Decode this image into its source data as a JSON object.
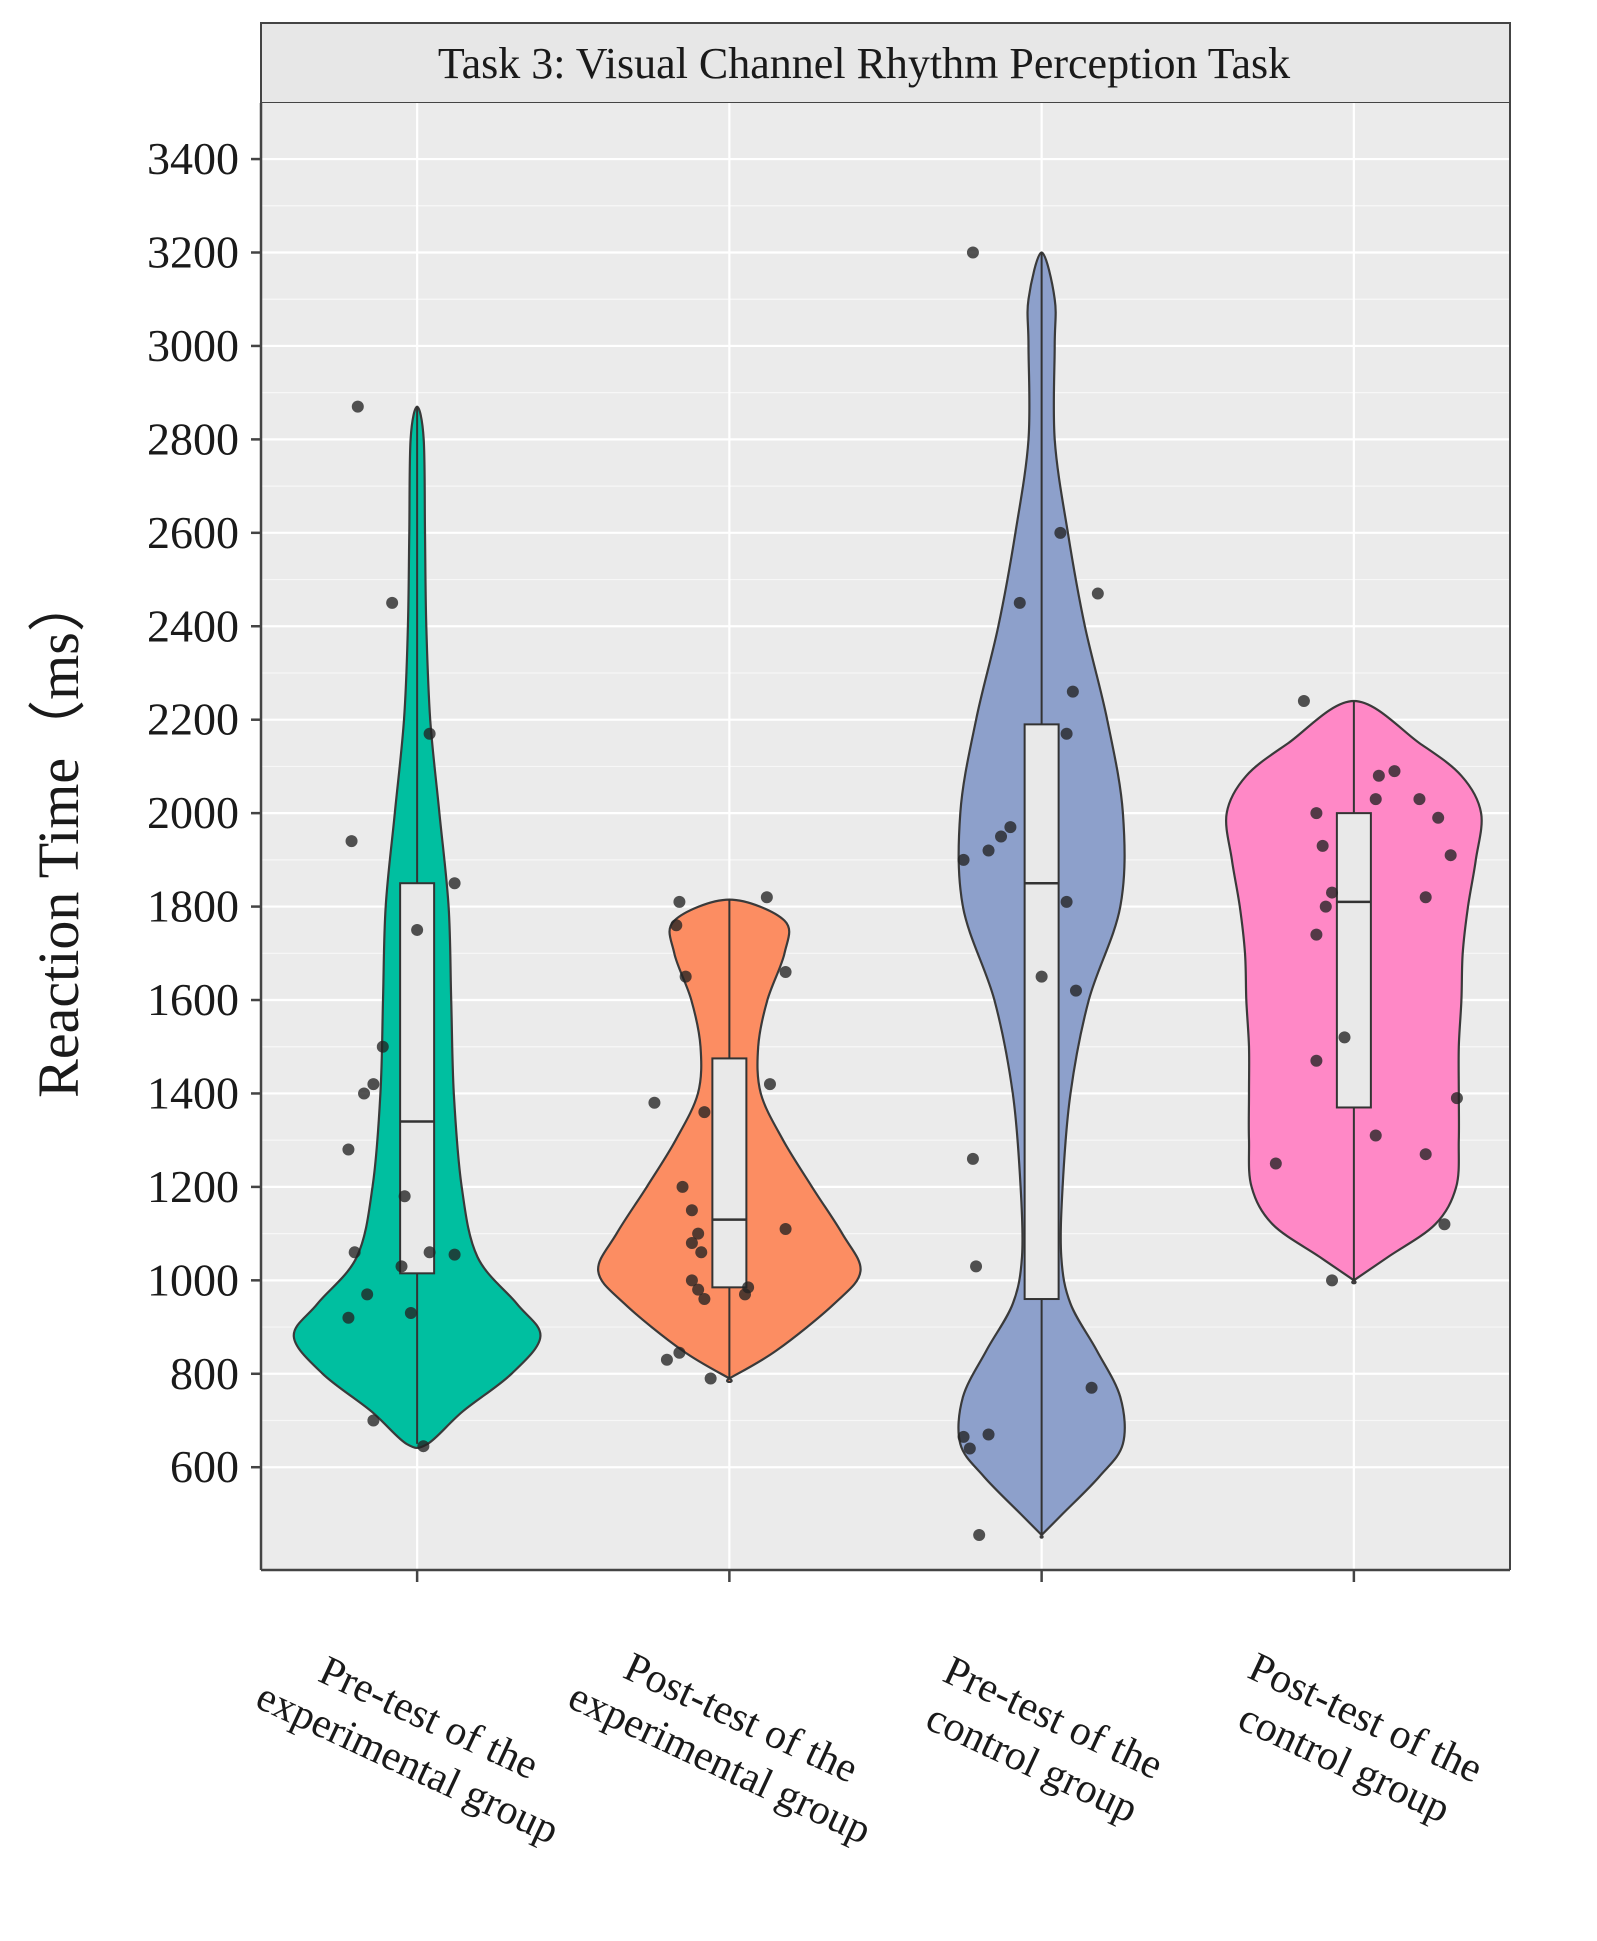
{
  "chart_data": {
    "type": "violin",
    "title": "Task 3: Visual Channel Rhythm Perception Task",
    "ylabel": "Reaction Time（ms）",
    "xlabel": "",
    "ylim": [
      380,
      3520
    ],
    "yticks": [
      600,
      800,
      1000,
      1200,
      1400,
      1600,
      1800,
      2000,
      2200,
      2400,
      2600,
      2800,
      3000,
      3200,
      3400
    ],
    "grid": true,
    "groups": [
      {
        "label": [
          "Pre-test of the",
          "experimental group"
        ],
        "color": "#00BFA0",
        "box": {
          "q1": 1015,
          "median": 1340,
          "q3": 1850
        },
        "violin": [
          [
            650,
            0.08
          ],
          [
            720,
            0.35
          ],
          [
            800,
            0.72
          ],
          [
            880,
            0.94
          ],
          [
            950,
            0.76
          ],
          [
            1050,
            0.46
          ],
          [
            1200,
            0.34
          ],
          [
            1400,
            0.28
          ],
          [
            1600,
            0.26
          ],
          [
            1800,
            0.24
          ],
          [
            2000,
            0.17
          ],
          [
            2200,
            0.1
          ],
          [
            2400,
            0.07
          ],
          [
            2600,
            0.06
          ],
          [
            2800,
            0.05
          ],
          [
            2870,
            0.0
          ]
        ],
        "points": [
          [
            0.31,
            2870
          ],
          [
            0.42,
            2450
          ],
          [
            0.54,
            2170
          ],
          [
            0.29,
            1940
          ],
          [
            0.62,
            1850
          ],
          [
            0.5,
            1750
          ],
          [
            0.39,
            1500
          ],
          [
            0.36,
            1420
          ],
          [
            0.33,
            1400
          ],
          [
            0.28,
            1280
          ],
          [
            0.46,
            1180
          ],
          [
            0.3,
            1060
          ],
          [
            0.54,
            1060
          ],
          [
            0.62,
            1055
          ],
          [
            0.45,
            1030
          ],
          [
            0.34,
            970
          ],
          [
            0.28,
            920
          ],
          [
            0.48,
            930
          ],
          [
            0.36,
            700
          ],
          [
            0.52,
            645
          ]
        ]
      },
      {
        "label": [
          "Post-test of the",
          "experimental group"
        ],
        "color": "#FC8D62",
        "box": {
          "q1": 985,
          "median": 1130,
          "q3": 1475
        },
        "violin": [
          [
            790,
            0.0
          ],
          [
            850,
            0.36
          ],
          [
            950,
            0.8
          ],
          [
            1020,
            1.0
          ],
          [
            1100,
            0.86
          ],
          [
            1200,
            0.63
          ],
          [
            1300,
            0.41
          ],
          [
            1400,
            0.24
          ],
          [
            1500,
            0.22
          ],
          [
            1600,
            0.29
          ],
          [
            1700,
            0.42
          ],
          [
            1770,
            0.42
          ],
          [
            1815,
            0.0
          ]
        ],
        "points": [
          [
            0.34,
            1810
          ],
          [
            0.62,
            1820
          ],
          [
            0.33,
            1760
          ],
          [
            0.36,
            1650
          ],
          [
            0.68,
            1660
          ],
          [
            0.26,
            1380
          ],
          [
            0.63,
            1420
          ],
          [
            0.42,
            1360
          ],
          [
            0.35,
            1200
          ],
          [
            0.38,
            1150
          ],
          [
            0.4,
            1100
          ],
          [
            0.68,
            1110
          ],
          [
            0.38,
            1080
          ],
          [
            0.41,
            1060
          ],
          [
            0.38,
            1000
          ],
          [
            0.4,
            980
          ],
          [
            0.56,
            985
          ],
          [
            0.42,
            960
          ],
          [
            0.55,
            970
          ],
          [
            0.3,
            830
          ],
          [
            0.34,
            845
          ],
          [
            0.44,
            790
          ]
        ]
      },
      {
        "label": [
          "Pre-test of the",
          "control group"
        ],
        "color": "#8DA0CB",
        "box": {
          "q1": 960,
          "median": 1850,
          "q3": 2190
        },
        "violin": [
          [
            455,
            0.0
          ],
          [
            500,
            0.16
          ],
          [
            580,
            0.44
          ],
          [
            650,
            0.62
          ],
          [
            750,
            0.6
          ],
          [
            850,
            0.42
          ],
          [
            950,
            0.22
          ],
          [
            1050,
            0.15
          ],
          [
            1200,
            0.16
          ],
          [
            1400,
            0.22
          ],
          [
            1600,
            0.36
          ],
          [
            1800,
            0.6
          ],
          [
            2000,
            0.62
          ],
          [
            2200,
            0.5
          ],
          [
            2400,
            0.33
          ],
          [
            2600,
            0.2
          ],
          [
            2800,
            0.1
          ],
          [
            3000,
            0.1
          ],
          [
            3100,
            0.1
          ],
          [
            3200,
            0.0
          ]
        ],
        "points": [
          [
            0.28,
            3200
          ],
          [
            0.56,
            2600
          ],
          [
            0.43,
            2450
          ],
          [
            0.68,
            2470
          ],
          [
            0.6,
            2260
          ],
          [
            0.58,
            2170
          ],
          [
            0.25,
            1900
          ],
          [
            0.33,
            1920
          ],
          [
            0.4,
            1970
          ],
          [
            0.37,
            1950
          ],
          [
            0.58,
            1810
          ],
          [
            0.5,
            1650
          ],
          [
            0.61,
            1620
          ],
          [
            0.28,
            1260
          ],
          [
            0.29,
            1030
          ],
          [
            0.66,
            770
          ],
          [
            0.25,
            665
          ],
          [
            0.33,
            670
          ],
          [
            0.27,
            640
          ],
          [
            0.3,
            455
          ]
        ]
      },
      {
        "label": [
          "Post-test of the",
          "control group"
        ],
        "color": "#FF88C6",
        "box": {
          "q1": 1370,
          "median": 1810,
          "q3": 2000
        },
        "violin": [
          [
            1000,
            0.0
          ],
          [
            1050,
            0.26
          ],
          [
            1120,
            0.62
          ],
          [
            1200,
            0.78
          ],
          [
            1300,
            0.8
          ],
          [
            1400,
            0.8
          ],
          [
            1500,
            0.8
          ],
          [
            1600,
            0.82
          ],
          [
            1700,
            0.83
          ],
          [
            1800,
            0.87
          ],
          [
            1900,
            0.93
          ],
          [
            2000,
            0.97
          ],
          [
            2080,
            0.82
          ],
          [
            2150,
            0.5
          ],
          [
            2240,
            0.0
          ]
        ],
        "points": [
          [
            0.34,
            2240
          ],
          [
            0.63,
            2090
          ],
          [
            0.58,
            2080
          ],
          [
            0.71,
            2030
          ],
          [
            0.57,
            2030
          ],
          [
            0.38,
            2000
          ],
          [
            0.4,
            1930
          ],
          [
            0.77,
            1990
          ],
          [
            0.43,
            1830
          ],
          [
            0.81,
            1910
          ],
          [
            0.73,
            1820
          ],
          [
            0.41,
            1800
          ],
          [
            0.38,
            1740
          ],
          [
            0.47,
            1520
          ],
          [
            0.38,
            1470
          ],
          [
            0.83,
            1390
          ],
          [
            0.57,
            1310
          ],
          [
            0.73,
            1270
          ],
          [
            0.25,
            1250
          ],
          [
            0.79,
            1120
          ],
          [
            0.43,
            1000
          ]
        ]
      }
    ]
  }
}
